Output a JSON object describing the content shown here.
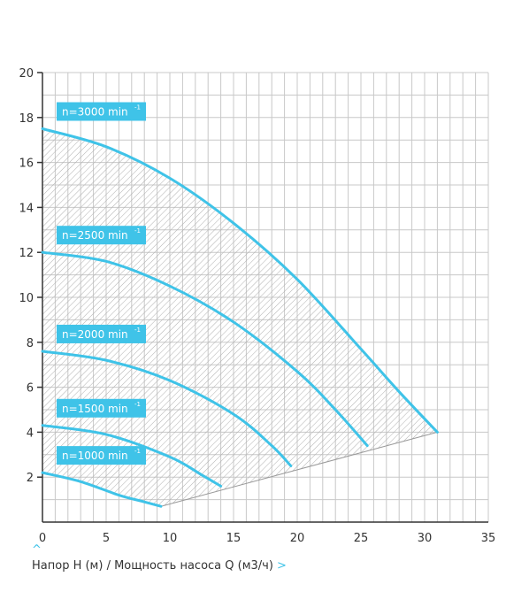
{
  "chart_data": {
    "type": "line",
    "xlabel": "Напор H (м) / Мощность насоса Q (м3/ч)",
    "x_ticks": [
      "0",
      "5",
      "10",
      "15",
      "20",
      "25",
      "30",
      "35"
    ],
    "y_ticks": [
      "2",
      "4",
      "6",
      "8",
      "10",
      "12",
      "14",
      "16",
      "18",
      "20"
    ],
    "xlim": [
      0,
      35
    ],
    "ylim": [
      0,
      20
    ],
    "grid": true,
    "series": [
      {
        "name": "n=3000 min",
        "label_base": "n=3000 min",
        "label_sup": "-1",
        "x": [
          0,
          5,
          10,
          15,
          20,
          25,
          28,
          31
        ],
        "y": [
          17.5,
          16.7,
          15.3,
          13.3,
          10.8,
          7.7,
          5.8,
          4.0
        ]
      },
      {
        "name": "n=2500 min",
        "label_base": "n=2500 min",
        "label_sup": "-1",
        "x": [
          0,
          5,
          10,
          15,
          20,
          23,
          25.5
        ],
        "y": [
          12.0,
          11.6,
          10.5,
          8.9,
          6.7,
          5.0,
          3.4
        ]
      },
      {
        "name": "n=2000 min",
        "label_base": "n=2000 min",
        "label_sup": "-1",
        "x": [
          0,
          5,
          10,
          15,
          18,
          19.5
        ],
        "y": [
          7.6,
          7.2,
          6.3,
          4.8,
          3.4,
          2.5
        ]
      },
      {
        "name": "n=1500 min",
        "label_base": "n=1500 min",
        "label_sup": "-1",
        "x": [
          0,
          5,
          10,
          12.5,
          14
        ],
        "y": [
          4.3,
          3.9,
          2.9,
          2.1,
          1.6
        ]
      },
      {
        "name": "n=1000 min",
        "label_base": "n=1000 min",
        "label_sup": "-1",
        "x": [
          0,
          3,
          6,
          8,
          9.3
        ],
        "y": [
          2.2,
          1.8,
          1.2,
          0.9,
          0.7
        ]
      }
    ]
  },
  "colors": {
    "curve": "#3fc3e8",
    "label_bg": "#3fc3e8",
    "grid": "#c8c8c8",
    "axis": "#333333",
    "hatch": "#b0b0b0"
  }
}
